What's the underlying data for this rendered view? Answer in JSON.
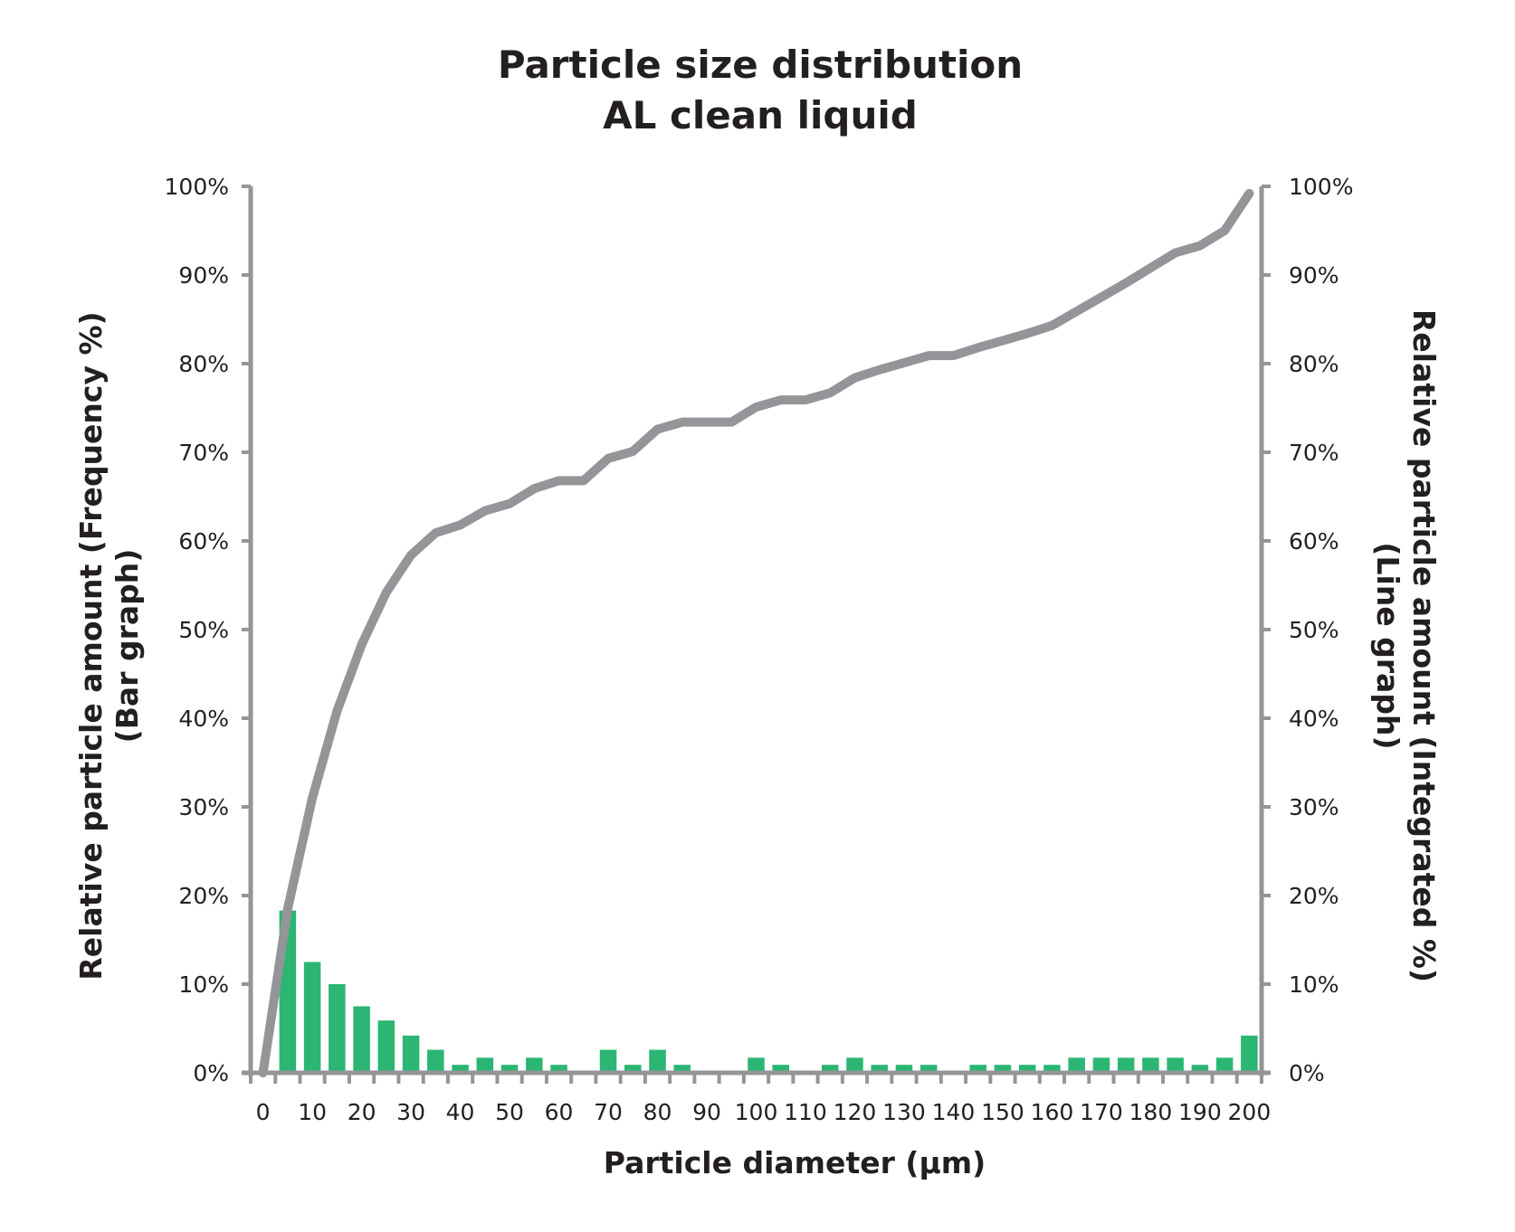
{
  "chart_data": {
    "type": "bar+line",
    "title": [
      "Particle size distribution",
      "AL clean liquid"
    ],
    "xlabel": "Particle diameter (µm)",
    "ylabel_left": [
      "Relative particle amount (Frequency %)",
      "(Bar graph)"
    ],
    "ylabel_right": [
      "Relative particle amount (Integrated %)",
      "(Line graph)"
    ],
    "categories": [
      0,
      5,
      10,
      15,
      20,
      25,
      30,
      35,
      40,
      45,
      50,
      55,
      60,
      65,
      70,
      75,
      80,
      85,
      90,
      95,
      100,
      105,
      110,
      115,
      120,
      125,
      130,
      135,
      140,
      145,
      150,
      155,
      160,
      165,
      170,
      175,
      180,
      185,
      190,
      195,
      200
    ],
    "x_tick_labels": [
      "0",
      "10",
      "20",
      "30",
      "40",
      "50",
      "60",
      "70",
      "80",
      "90",
      "100",
      "110",
      "120",
      "130",
      "140",
      "150",
      "160",
      "170",
      "180",
      "190",
      "200"
    ],
    "y_tick_labels": [
      "0%",
      "10%",
      "20%",
      "30%",
      "40%",
      "50%",
      "60%",
      "70%",
      "80%",
      "90%",
      "100%"
    ],
    "ylim": [
      0,
      100
    ],
    "grid": false,
    "series": [
      {
        "type": "bar",
        "axis": "left",
        "color": "#2bb673",
        "values": [
          0,
          18.3,
          12.5,
          10.0,
          7.5,
          5.9,
          4.2,
          2.6,
          0.9,
          1.7,
          0.9,
          1.7,
          0.9,
          0,
          2.6,
          0.9,
          2.6,
          0.9,
          0,
          0,
          1.7,
          0.9,
          0,
          0.9,
          1.7,
          0.9,
          0.9,
          0.9,
          0,
          0.9,
          0.9,
          0.9,
          0.9,
          1.7,
          1.7,
          1.7,
          1.7,
          1.7,
          0.9,
          1.7,
          4.2
        ]
      },
      {
        "type": "line",
        "axis": "right",
        "color": "#939598",
        "values": [
          0,
          18.5,
          31.0,
          40.8,
          48.3,
          54.2,
          58.4,
          60.9,
          61.8,
          63.4,
          64.2,
          65.9,
          66.8,
          66.8,
          69.3,
          70.1,
          72.6,
          73.4,
          73.4,
          73.4,
          75.1,
          75.9,
          75.9,
          76.7,
          78.4,
          79.3,
          80.1,
          80.9,
          80.9,
          81.8,
          82.6,
          83.4,
          84.3,
          85.9,
          87.5,
          89.1,
          90.8,
          92.5,
          93.3,
          95.0,
          99.2
        ]
      }
    ],
    "axis_color": "#939598"
  }
}
